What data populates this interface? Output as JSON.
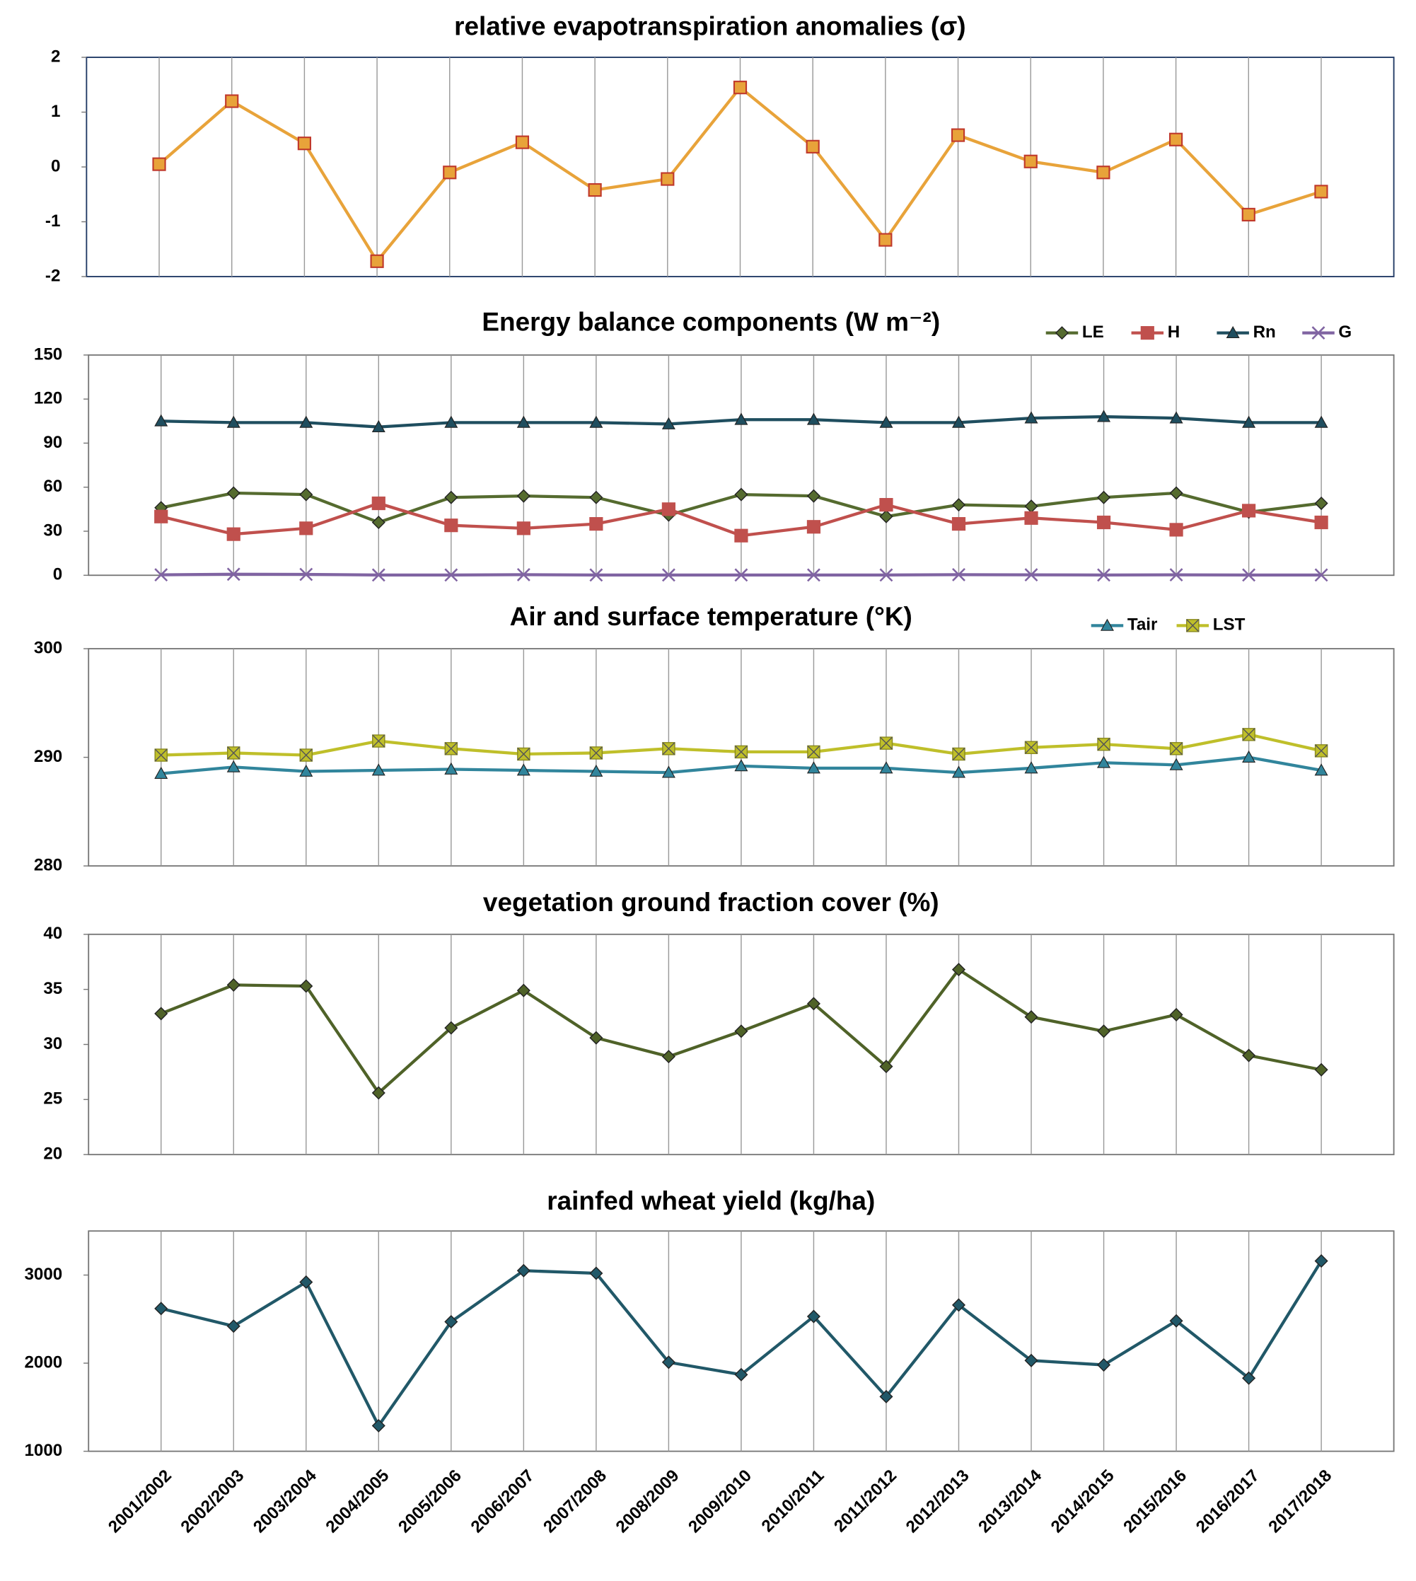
{
  "chart_data": [
    {
      "type": "line",
      "title": "relative evapotranspiration anomalies (σ)",
      "values": [
        0.05,
        1.2,
        0.43,
        -1.72,
        -0.1,
        0.45,
        -0.42,
        -0.22,
        1.45,
        0.37,
        -1.33,
        0.58,
        0.1,
        -0.1,
        0.5,
        -0.87,
        -0.45
      ],
      "color": "#e8a33a",
      "marker": "square",
      "marker_edge": "#c0392b",
      "ylim": [
        -2,
        2
      ],
      "yticks": [
        -2,
        -1,
        0,
        1,
        2
      ],
      "grid": "x"
    },
    {
      "type": "line",
      "title": "Energy balance components (W m⁻²)",
      "series": [
        {
          "name": "LE",
          "color": "#556b2f",
          "marker": "diamond",
          "values": [
            46,
            56,
            55,
            36,
            53,
            54,
            53,
            41,
            55,
            54,
            40,
            48,
            47,
            53,
            56,
            43,
            49
          ]
        },
        {
          "name": "H",
          "color": "#c0504d",
          "marker": "square",
          "values": [
            40,
            28,
            32,
            49,
            34,
            32,
            35,
            45,
            27,
            33,
            48,
            35,
            39,
            36,
            31,
            44,
            36
          ]
        },
        {
          "name": "Rn",
          "color": "#1f4e5f",
          "marker": "triangle",
          "values": [
            105,
            104,
            104,
            101,
            104,
            104,
            104,
            103,
            106,
            106,
            104,
            104,
            107,
            108,
            107,
            104,
            104
          ]
        },
        {
          "name": "G",
          "color": "#8064a2",
          "marker": "x",
          "values": [
            0.3,
            0.7,
            0.6,
            0.2,
            0.2,
            0.4,
            0.2,
            0.2,
            0.2,
            0.2,
            0.2,
            0.4,
            0.3,
            0.2,
            0.3,
            0.2,
            0.2
          ]
        }
      ],
      "ylim": [
        0,
        150
      ],
      "yticks": [
        0,
        30,
        60,
        90,
        120,
        150
      ],
      "grid": "x",
      "legend": "top-right"
    },
    {
      "type": "line",
      "title": "Air and surface temperature (°K)",
      "series": [
        {
          "name": "Tair",
          "color": "#31859c",
          "marker": "triangle",
          "values": [
            288.5,
            289.1,
            288.7,
            288.8,
            288.9,
            288.8,
            288.7,
            288.6,
            289.2,
            289.0,
            289.0,
            288.6,
            289.0,
            289.5,
            289.3,
            290.0,
            288.8
          ]
        },
        {
          "name": "LST",
          "color": "#bfbf2a",
          "marker": "squarex",
          "values": [
            290.2,
            290.4,
            290.2,
            291.5,
            290.8,
            290.3,
            290.4,
            290.8,
            290.5,
            290.5,
            291.3,
            290.3,
            290.9,
            291.2,
            290.8,
            292.1,
            290.6
          ]
        }
      ],
      "ylim": [
        280,
        300
      ],
      "yticks": [
        280,
        290,
        300
      ],
      "grid": "x",
      "legend": "top-right"
    },
    {
      "type": "line",
      "title": "vegetation ground fraction cover (%)",
      "values": [
        32.8,
        35.4,
        35.3,
        25.6,
        31.5,
        34.9,
        30.6,
        28.9,
        31.2,
        33.7,
        28.0,
        36.8,
        32.5,
        31.2,
        32.7,
        29.0,
        27.7
      ],
      "color": "#4f6228",
      "marker": "diamond",
      "ylim": [
        20,
        40
      ],
      "yticks": [
        20,
        25,
        30,
        35,
        40
      ],
      "grid": "x"
    },
    {
      "type": "line",
      "title": "rainfed wheat yield (kg/ha)",
      "categories": [
        "2001/2002",
        "2002/2003",
        "2003/2004",
        "2004/2005",
        "2005/2006",
        "2006/2007",
        "2007/2008",
        "2008/2009",
        "2009/2010",
        "2010/2011",
        "2011/2012",
        "2012/2013",
        "2013/2014",
        "2014/2015",
        "2015/2016",
        "2016/2017",
        "2017/2018"
      ],
      "values": [
        2620,
        2420,
        2920,
        1290,
        2470,
        3050,
        3020,
        2010,
        1870,
        2530,
        1620,
        2660,
        2030,
        1980,
        2480,
        1830,
        3160
      ],
      "color": "#215868",
      "marker": "diamond",
      "ylim": [
        1000,
        3500
      ],
      "yticks": [
        1000,
        2000,
        3000
      ],
      "grid": "x"
    }
  ]
}
